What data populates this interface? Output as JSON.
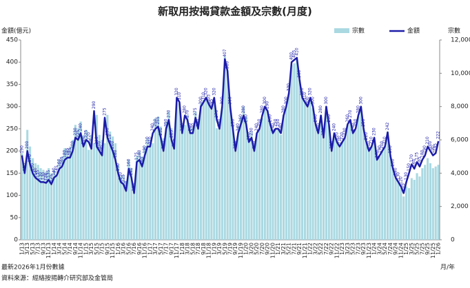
{
  "chart_data": {
    "type": "bar-line",
    "title": "新取用按揭貸款金額及宗數(月度)",
    "y_label": "金額(億元)",
    "y2_label": "宗數",
    "x_label": "月/年",
    "notes": [
      "最新2026年1月份數據",
      "資料來源：經絡按揭轉介研究部及金管局"
    ],
    "legend": "top-right",
    "categories": [
      "1/13",
      null,
      "3/13",
      null,
      "5/13",
      null,
      "7/13",
      null,
      "9/13",
      null,
      "11/13",
      null,
      "1/14",
      null,
      "3/14",
      null,
      "5/14",
      null,
      "7/14",
      null,
      "9/14",
      null,
      "11/14",
      null,
      "1/15",
      null,
      "3/15",
      null,
      "5/15",
      null,
      "7/15",
      null,
      "9/15",
      null,
      "11/15",
      null,
      "1/16",
      null,
      "3/16",
      null,
      "5/16",
      null,
      "7/16",
      null,
      "9/16",
      null,
      "11/16",
      null,
      "1/17",
      null,
      "3/17",
      null,
      "5/17",
      null,
      "7/17",
      null,
      "9/17",
      null,
      "11/17",
      null,
      "1/18",
      null,
      "3/18",
      null,
      "5/18",
      null,
      "7/18",
      null,
      "9/18",
      null,
      "11/18",
      null,
      "1/19",
      null,
      "3/19",
      null,
      "5/19",
      null,
      "7/19",
      null,
      "9/19",
      null,
      "11/19",
      null,
      "1/20",
      null,
      "3/20",
      null,
      "5/20",
      null,
      "7/20",
      null,
      "9/20",
      null,
      "11/20",
      null,
      "1/21",
      null,
      "3/21",
      null,
      "5/21",
      null,
      "7/21",
      null,
      "9/21",
      null,
      "11/21",
      null,
      "1/22",
      null,
      "3/22",
      null,
      "5/22",
      null,
      "7/22",
      null,
      "9/22",
      null,
      "11/22",
      null,
      "1/23",
      null,
      "3/23",
      null,
      "5/23",
      null,
      "7/23",
      null,
      "9/23",
      null,
      "11/23",
      null,
      "1/24",
      null,
      "3/24",
      null,
      "5/24",
      null,
      "7/24",
      null,
      "9/24",
      null,
      "11/24",
      null,
      "1/25",
      null,
      "3/25",
      null,
      "5/25",
      null,
      "7/25",
      null,
      "9/25",
      null,
      "11/25",
      null,
      "1/26"
    ],
    "series": [
      {
        "name": "宗數",
        "type": "bar",
        "axis": "y2",
        "color": "#aad9e2",
        "values": [
          5200,
          4300,
          6600,
          5600,
          4900,
          4600,
          4500,
          4300,
          4200,
          4100,
          4300,
          4000,
          4200,
          3900,
          4800,
          5000,
          5500,
          5400,
          5600,
          6000,
          6900,
          6700,
          7100,
          6300,
          6600,
          5400,
          6300,
          5800,
          7500,
          6300,
          6000,
          5800,
          7500,
          6500,
          6200,
          5800,
          4500,
          3800,
          3900,
          3500,
          4800,
          4300,
          3300,
          5000,
          5300,
          5000,
          5600,
          6100,
          6000,
          5800,
          7300,
          7400,
          6800,
          6100,
          7100,
          7700,
          6700,
          6100,
          8500,
          8200,
          6800,
          6900,
          7500,
          6700,
          6700,
          7700,
          7100,
          8200,
          8400,
          8600,
          8300,
          8000,
          8500,
          6700,
          7100,
          8000,
          11000,
          10200,
          8200,
          6800,
          5900,
          6800,
          7400,
          8000,
          7400,
          6100,
          6500,
          5600,
          6400,
          6700,
          7300,
          8000,
          7800,
          7000,
          6500,
          6700,
          6700,
          6300,
          7500,
          8000,
          8800,
          10500,
          10600,
          10800,
          9600,
          8500,
          8300,
          8000,
          8500,
          7900,
          6900,
          6500,
          7500,
          6200,
          8000,
          6900,
          5400,
          6300,
          5900,
          5600,
          5900,
          6100,
          6900,
          7200,
          6400,
          6600,
          7400,
          8000,
          6700,
          5800,
          5300,
          5600,
          6100,
          4800,
          5000,
          5300,
          5600,
          6500,
          5100,
          4300,
          3700,
          3500,
          3100,
          2600,
          3200,
          3100,
          3700,
          3600,
          4000,
          3800,
          4300,
          4500,
          4900,
          4600,
          4300,
          4400,
          4500
        ]
      },
      {
        "name": "金額",
        "type": "line",
        "axis": "y",
        "color": "#1c1ca8",
        "values": [
          190,
          150,
          200,
          170,
          150,
          140,
          135,
          130,
          130,
          128,
          135,
          125,
          140,
          145,
          160,
          165,
          180,
          185,
          185,
          200,
          230,
          225,
          240,
          210,
          225,
          220,
          205,
          290,
          210,
          200,
          190,
          275,
          230,
          215,
          200,
          180,
          150,
          130,
          125,
          110,
          160,
          140,
          105,
          175,
          180,
          165,
          190,
          210,
          210,
          240,
          250,
          255,
          230,
          200,
          250,
          270,
          225,
          205,
          320,
          310,
          240,
          280,
          270,
          240,
          240,
          275,
          250,
          300,
          310,
          320,
          305,
          295,
          320,
          270,
          250,
          300,
          407,
          380,
          300,
          250,
          200,
          240,
          260,
          280,
          260,
          220,
          230,
          200,
          240,
          250,
          280,
          300,
          290,
          260,
          240,
          250,
          250,
          240,
          280,
          300,
          330,
          400,
          405,
          410,
          360,
          320,
          310,
          300,
          320,
          300,
          260,
          240,
          280,
          230,
          300,
          260,
          200,
          240,
          220,
          210,
          220,
          230,
          260,
          270,
          240,
          250,
          280,
          300,
          250,
          220,
          200,
          210,
          230,
          180,
          190,
          200,
          210,
          242,
          190,
          160,
          140,
          130,
          120,
          105,
          130,
          150,
          170,
          160,
          175,
          165,
          180,
          190,
          210,
          200,
          190,
          195,
          222
        ]
      }
    ],
    "ylim": [
      0,
      450
    ],
    "yticks": [
      0,
      50,
      100,
      150,
      200,
      250,
      300,
      350,
      400,
      450
    ],
    "y2lim": [
      0,
      12000
    ],
    "y2ticks": [
      0,
      {
        "value": 2000,
        "label": "2,000"
      },
      {
        "value": 4000,
        "label": "4,000"
      },
      {
        "value": 6000,
        "label": "6,000"
      },
      {
        "value": 8000,
        "label": "8,000"
      },
      {
        "value": 10000,
        "label": "10,000"
      },
      {
        "value": 12000,
        "label": "12,000"
      }
    ],
    "grid": false
  }
}
